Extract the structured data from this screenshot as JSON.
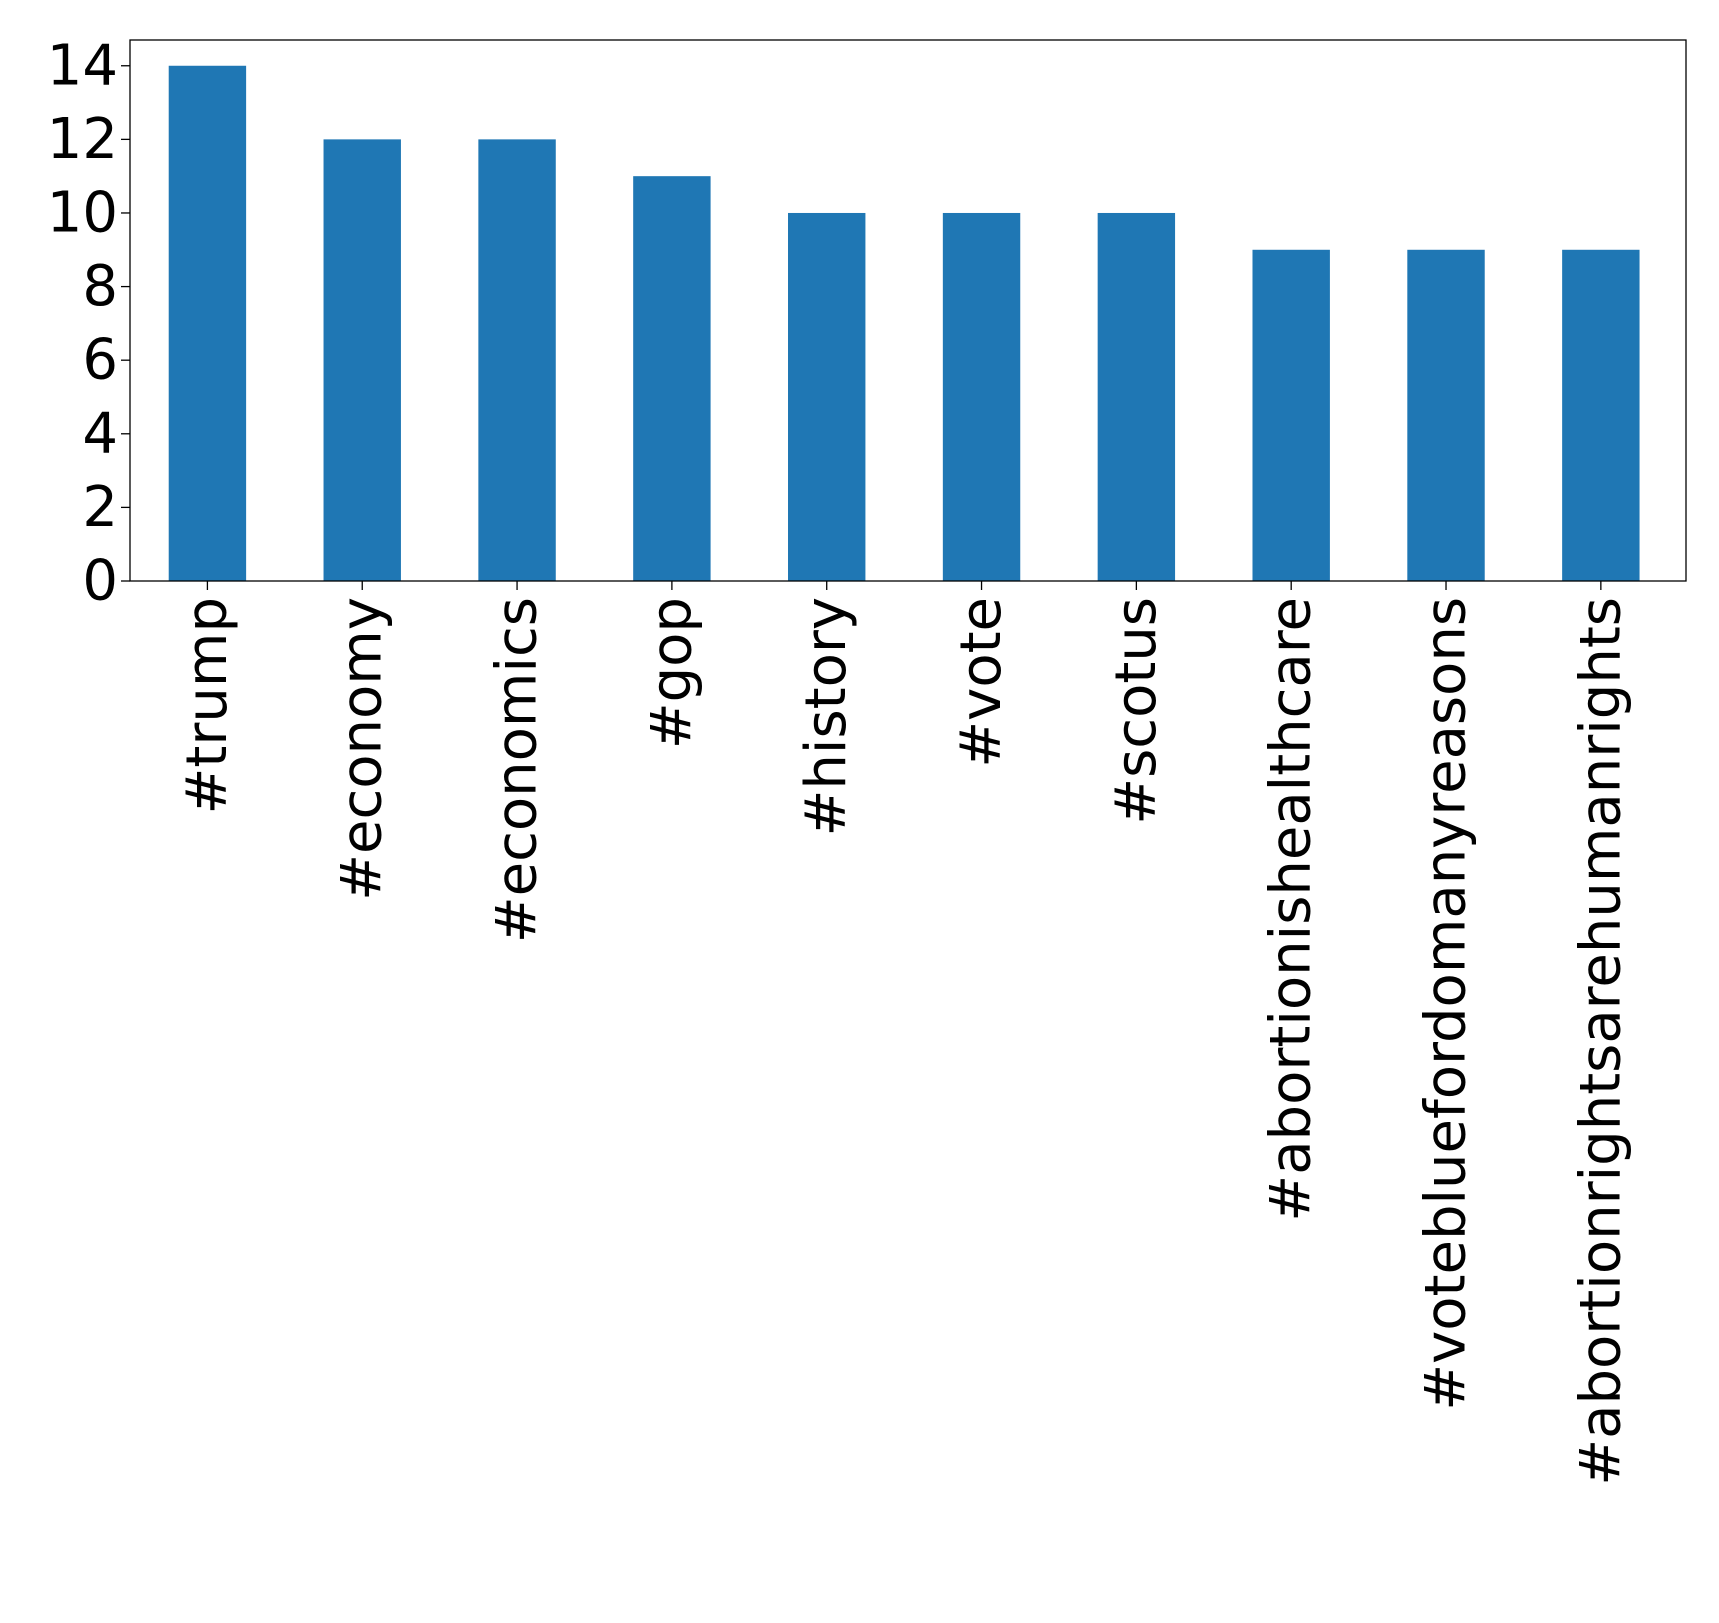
{
  "chart_data": {
    "type": "bar",
    "title": "",
    "xlabel": "",
    "ylabel": "",
    "categories": [
      "#trump",
      "#economy",
      "#economics",
      "#gop",
      "#history",
      "#vote",
      "#scotus",
      "#abortionishealthcare",
      "#votebluefordomanyreasons",
      "#abortionrightsarehumanrights"
    ],
    "values": [
      14,
      12,
      12,
      11,
      10,
      10,
      10,
      9,
      9,
      9
    ],
    "ylim": [
      0,
      14.7
    ],
    "yticks": [
      0,
      2,
      4,
      6,
      8,
      10,
      12,
      14
    ],
    "ytick_labels": [
      "0",
      "2",
      "4",
      "6",
      "8",
      "10",
      "12",
      "14"
    ],
    "bar_color": "#1f77b4",
    "grid": false,
    "legend": "none"
  }
}
